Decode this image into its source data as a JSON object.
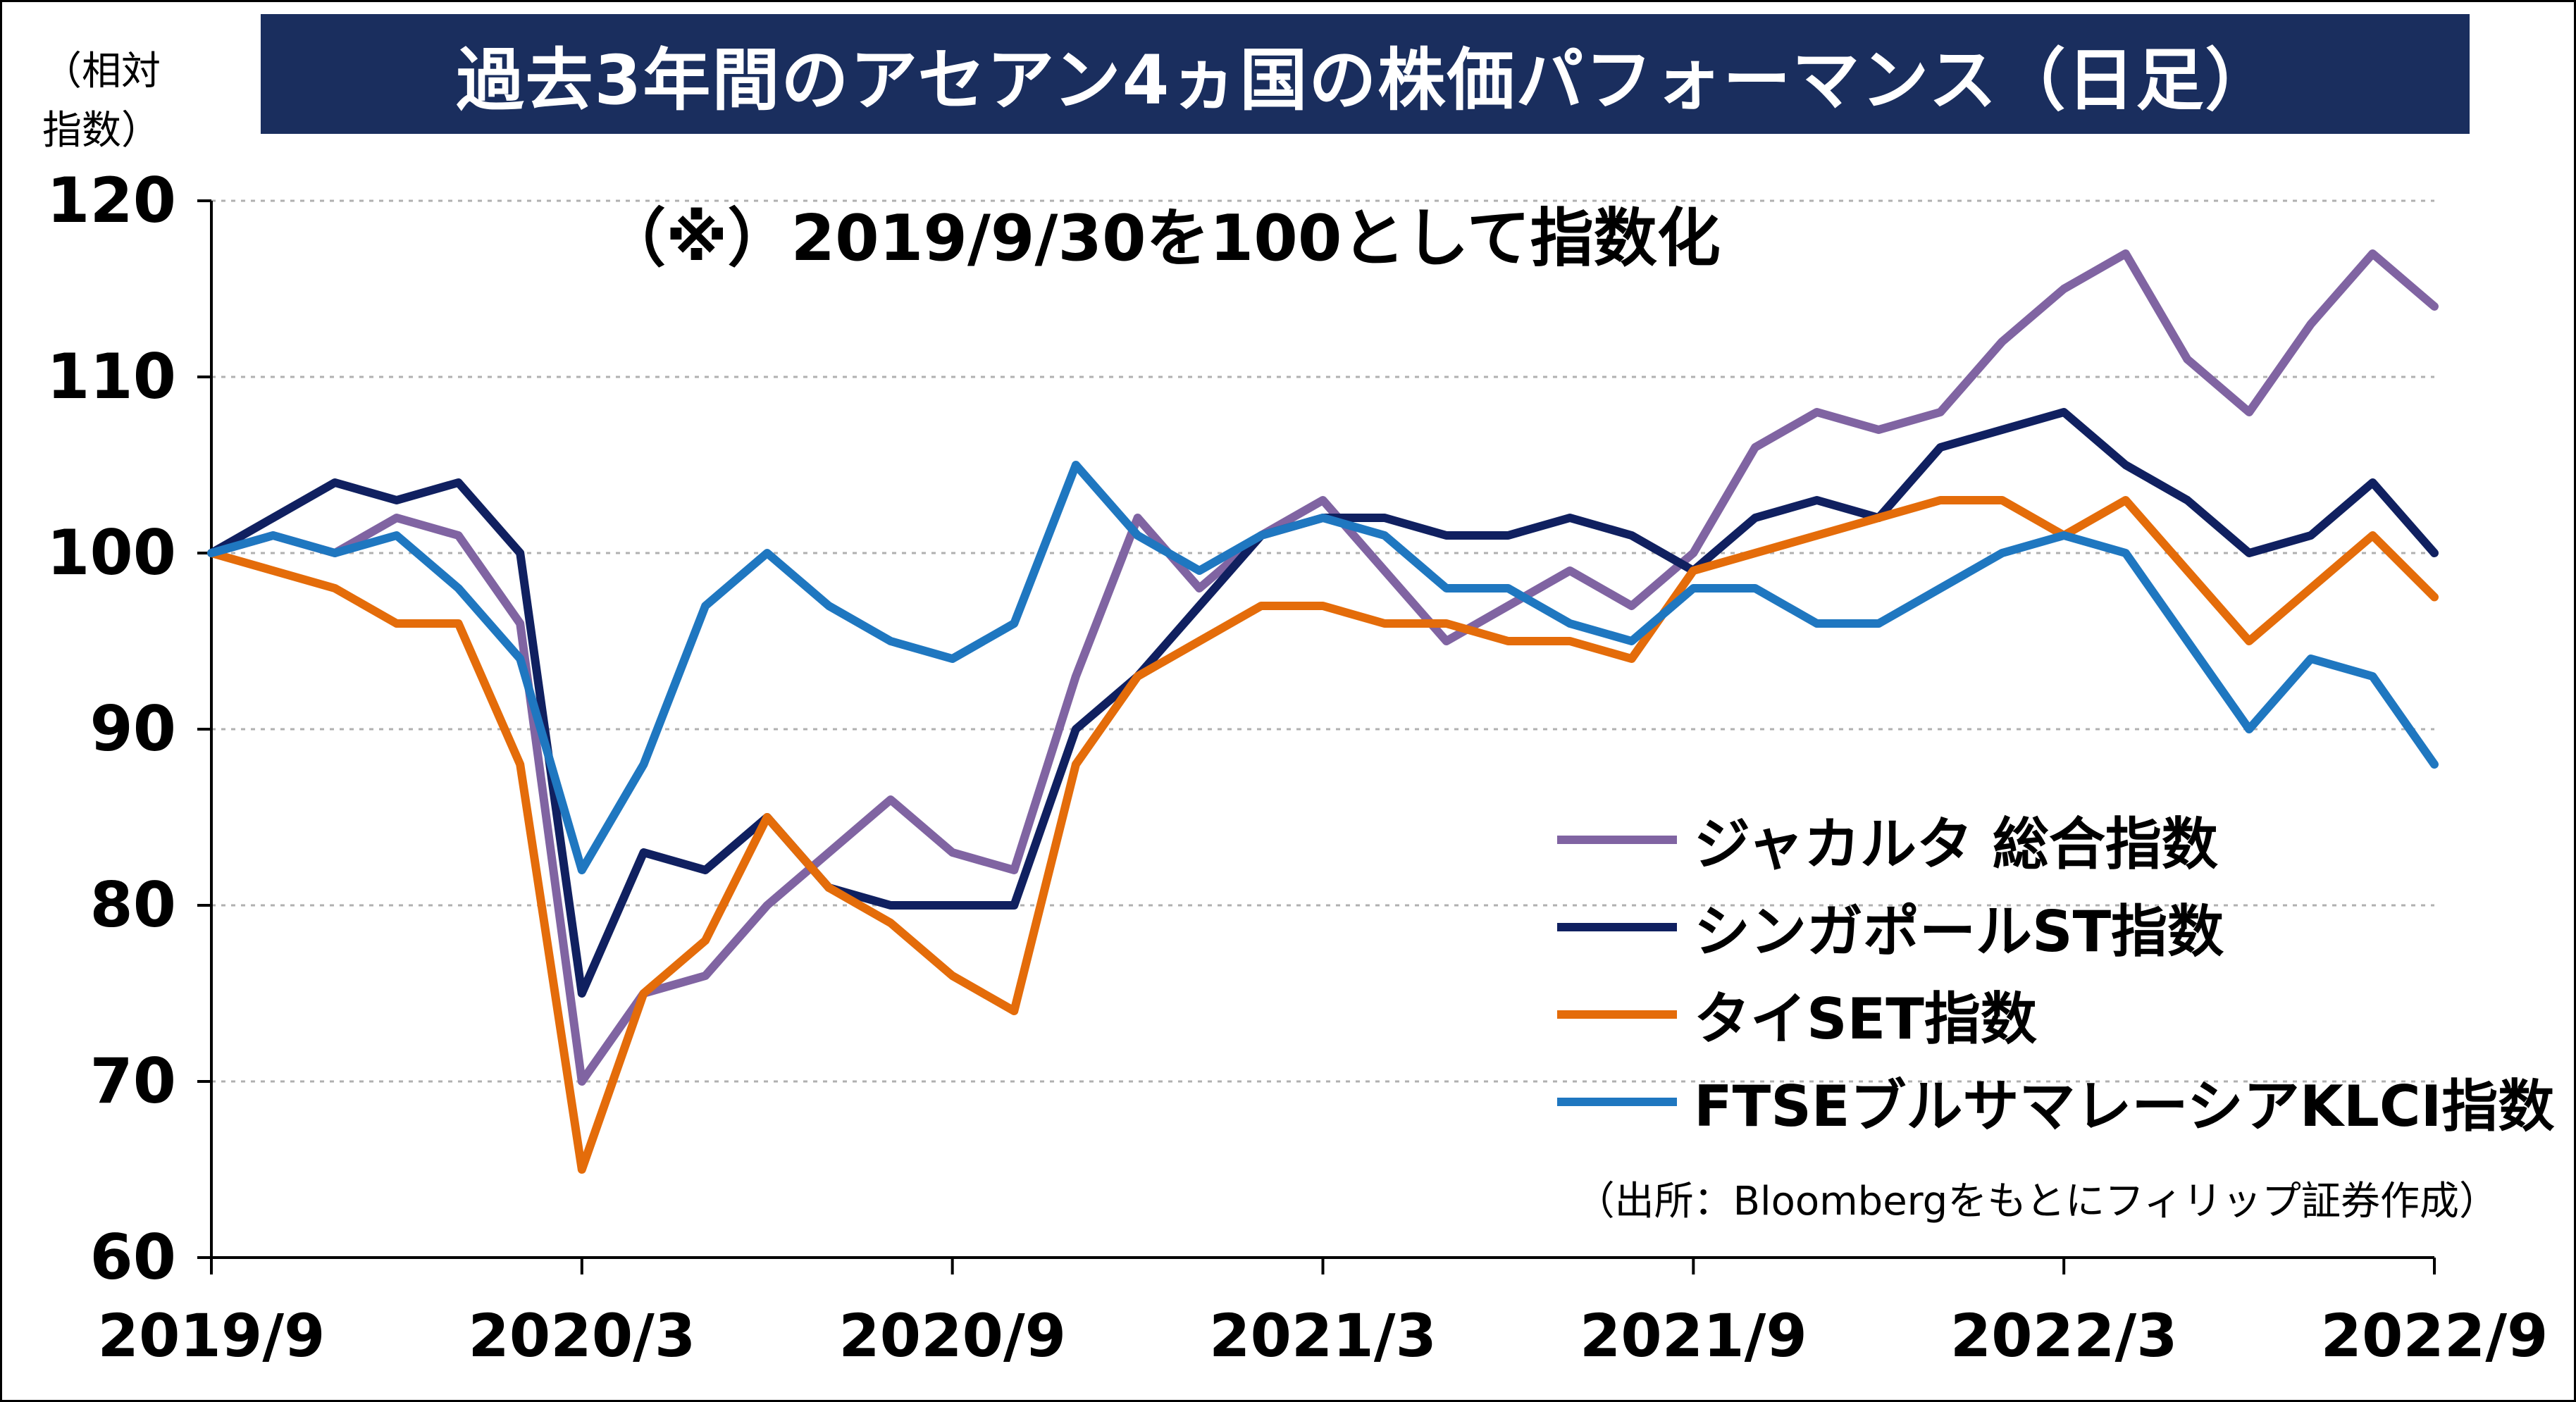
{
  "header": {
    "title": "過去3年間のアセアン4ヵ国の株価パフォーマンス（日足）",
    "unit_label_line1": "（相対",
    "unit_label_line2": "指数）"
  },
  "annotations": {
    "note": "（※）2019/9/30を100として指数化",
    "source": "（出所：Bloombergをもとにフィリップ証券作成）"
  },
  "colors": {
    "jakarta": "#8064a2",
    "singapore": "#102060",
    "thai": "#e46c0a",
    "klci": "#1f77c0",
    "grid": "#b0b0b0",
    "axis": "#000000"
  },
  "chart_data": {
    "type": "line",
    "title": "過去3年間のアセアン4ヵ国の株価パフォーマンス（日足）",
    "ylim": [
      60,
      120
    ],
    "yticks": [
      60,
      70,
      80,
      90,
      100,
      110,
      120
    ],
    "xticks": [
      "2019/9",
      "2020/3",
      "2020/9",
      "2021/3",
      "2021/9",
      "2022/3",
      "2022/9"
    ],
    "grid": true,
    "legend_position": "lower-right",
    "x": [
      "2019/9",
      "2019/10",
      "2019/11",
      "2019/12",
      "2020/1",
      "2020/2",
      "2020/3",
      "2020/4",
      "2020/5",
      "2020/6",
      "2020/7",
      "2020/8",
      "2020/9",
      "2020/10",
      "2020/11",
      "2020/12",
      "2021/1",
      "2021/2",
      "2021/3",
      "2021/4",
      "2021/5",
      "2021/6",
      "2021/7",
      "2021/8",
      "2021/9",
      "2021/10",
      "2021/11",
      "2021/12",
      "2022/1",
      "2022/2",
      "2022/3",
      "2022/4",
      "2022/5",
      "2022/6",
      "2022/7",
      "2022/8",
      "2022/9"
    ],
    "series": [
      {
        "name": "ジャカルタ 総合指数",
        "color_key": "jakarta",
        "values": [
          100,
          101,
          100,
          102,
          101,
          96,
          70,
          75,
          76,
          80,
          83,
          86,
          83,
          82,
          93,
          102,
          98,
          101,
          103,
          99,
          95,
          97,
          99,
          97,
          100,
          106,
          108,
          107,
          108,
          112,
          115,
          117,
          111,
          108,
          113,
          117,
          114
        ]
      },
      {
        "name": "シンガポールST指数",
        "color_key": "singapore",
        "values": [
          100,
          102,
          104,
          103,
          104,
          100,
          75,
          83,
          82,
          85,
          81,
          80,
          80,
          80,
          90,
          93,
          97,
          101,
          102,
          102,
          101,
          101,
          102,
          101,
          99,
          102,
          103,
          102,
          106,
          107,
          108,
          105,
          103,
          100,
          101,
          104,
          100
        ]
      },
      {
        "name": "タイSET指数",
        "color_key": "thai",
        "values": [
          100,
          99,
          98,
          96,
          96,
          88,
          65,
          75,
          78,
          85,
          81,
          79,
          76,
          74,
          88,
          93,
          95,
          97,
          97,
          96,
          96,
          95,
          95,
          94,
          99,
          100,
          101,
          102,
          103,
          103,
          101,
          103,
          99,
          95,
          98,
          101,
          97.5
        ]
      },
      {
        "name": "FTSEブルサマレーシアKLCI指数",
        "color_key": "klci",
        "values": [
          100,
          101,
          100,
          101,
          98,
          94,
          82,
          88,
          97,
          100,
          97,
          95,
          94,
          96,
          105,
          101,
          99,
          101,
          102,
          101,
          98,
          98,
          96,
          95,
          98,
          98,
          96,
          96,
          98,
          100,
          101,
          100,
          95,
          90,
          94,
          93,
          88
        ]
      }
    ]
  }
}
